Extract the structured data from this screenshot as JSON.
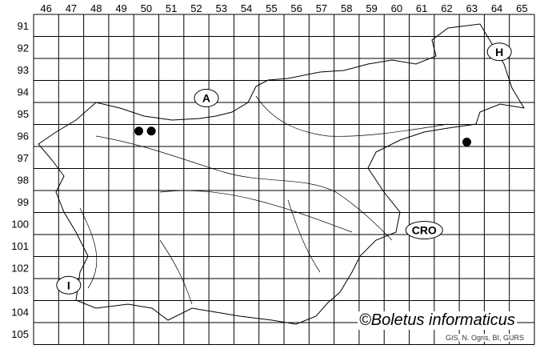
{
  "map": {
    "columns": [
      "46",
      "47",
      "48",
      "49",
      "50",
      "51",
      "52",
      "53",
      "54",
      "55",
      "56",
      "57",
      "58",
      "59",
      "60",
      "61",
      "62",
      "63",
      "64",
      "65"
    ],
    "rows": [
      "91",
      "92",
      "93",
      "94",
      "95",
      "96",
      "97",
      "98",
      "99",
      "100",
      "101",
      "102",
      "103",
      "104",
      "105"
    ],
    "country_labels": [
      {
        "text": "A",
        "col": 52.9,
        "row": 94.8
      },
      {
        "text": "H",
        "col": 64.6,
        "row": 92.7
      },
      {
        "text": "CRO",
        "col": 61.6,
        "row": 100.8
      },
      {
        "text": "I",
        "col": 47.4,
        "row": 103.3
      }
    ],
    "records": [
      {
        "col": 50.2,
        "row": 96.3
      },
      {
        "col": 50.7,
        "row": 96.3
      },
      {
        "col": 63.3,
        "row": 96.8
      }
    ],
    "record_color": "#000000",
    "copyright": "©Boletus informaticus",
    "credits": "GIS, N. Ogris, BI, GURS"
  }
}
